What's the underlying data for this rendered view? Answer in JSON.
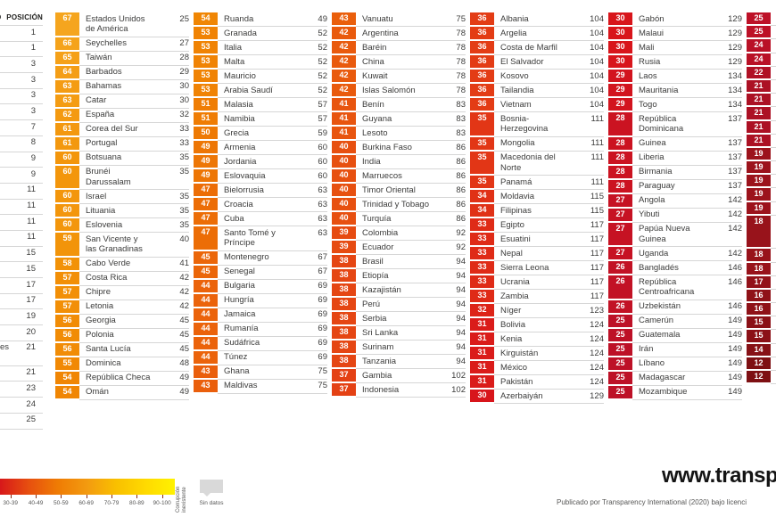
{
  "position_column": {
    "header": "POSICIÓN",
    "header_fragment": "O",
    "rows": [
      {
        "position": "1"
      },
      {
        "position": "1"
      },
      {
        "position": "3"
      },
      {
        "position": "3"
      },
      {
        "position": "3"
      },
      {
        "position": "3"
      },
      {
        "position": "7"
      },
      {
        "position": "8"
      },
      {
        "position": "9"
      },
      {
        "position": "9"
      },
      {
        "position": "11"
      },
      {
        "position": "11"
      },
      {
        "position": "11"
      },
      {
        "position": "11"
      },
      {
        "position": "15"
      },
      {
        "position": "15"
      },
      {
        "position": "17"
      },
      {
        "position": "17"
      },
      {
        "position": "19"
      },
      {
        "position": "20"
      },
      {
        "position": "21",
        "name_fragment": "es",
        "lines": 2
      },
      {
        "position": "21"
      },
      {
        "position": "23"
      },
      {
        "position": "24"
      },
      {
        "position": "25"
      }
    ]
  },
  "score_columns": [
    {
      "entries": [
        {
          "score": 67,
          "name": "Estados Unidos\nde América",
          "rank": "25"
        },
        {
          "score": 66,
          "name": "Seychelles",
          "rank": "27"
        },
        {
          "score": 65,
          "name": "Taiwán",
          "rank": "28"
        },
        {
          "score": 64,
          "name": "Barbados",
          "rank": "29"
        },
        {
          "score": 63,
          "name": "Bahamas",
          "rank": "30"
        },
        {
          "score": 63,
          "name": "Catar",
          "rank": "30"
        },
        {
          "score": 62,
          "name": "España",
          "rank": "32"
        },
        {
          "score": 61,
          "name": "Corea del Sur",
          "rank": "33"
        },
        {
          "score": 61,
          "name": "Portugal",
          "rank": "33"
        },
        {
          "score": 60,
          "name": "Botsuana",
          "rank": "35"
        },
        {
          "score": 60,
          "name": "Brunéi\nDarussalam",
          "rank": "35"
        },
        {
          "score": 60,
          "name": "Israel",
          "rank": "35"
        },
        {
          "score": 60,
          "name": "Lituania",
          "rank": "35"
        },
        {
          "score": 60,
          "name": "Eslovenia",
          "rank": "35"
        },
        {
          "score": 59,
          "name": "San Vicente y\nlas Granadinas",
          "rank": "40"
        },
        {
          "score": 58,
          "name": "Cabo Verde",
          "rank": "41"
        },
        {
          "score": 57,
          "name": "Costa Rica",
          "rank": "42"
        },
        {
          "score": 57,
          "name": "Chipre",
          "rank": "42"
        },
        {
          "score": 57,
          "name": "Letonia",
          "rank": "42"
        },
        {
          "score": 56,
          "name": "Georgia",
          "rank": "45"
        },
        {
          "score": 56,
          "name": "Polonia",
          "rank": "45"
        },
        {
          "score": 56,
          "name": "Santa Lucía",
          "rank": "45"
        },
        {
          "score": 55,
          "name": "Dominica",
          "rank": "48"
        },
        {
          "score": 54,
          "name": "República Checa",
          "rank": "49"
        },
        {
          "score": 54,
          "name": "Omán",
          "rank": "49"
        }
      ]
    },
    {
      "entries": [
        {
          "score": 54,
          "name": "Ruanda",
          "rank": "49"
        },
        {
          "score": 53,
          "name": "Granada",
          "rank": "52"
        },
        {
          "score": 53,
          "name": "Italia",
          "rank": "52"
        },
        {
          "score": 53,
          "name": "Malta",
          "rank": "52"
        },
        {
          "score": 53,
          "name": "Mauricio",
          "rank": "52"
        },
        {
          "score": 53,
          "name": "Arabia Saudí",
          "rank": "52"
        },
        {
          "score": 51,
          "name": "Malasia",
          "rank": "57"
        },
        {
          "score": 51,
          "name": "Namibia",
          "rank": "57"
        },
        {
          "score": 50,
          "name": "Grecia",
          "rank": "59"
        },
        {
          "score": 49,
          "name": "Armenia",
          "rank": "60"
        },
        {
          "score": 49,
          "name": "Jordania",
          "rank": "60"
        },
        {
          "score": 49,
          "name": "Eslovaquia",
          "rank": "60"
        },
        {
          "score": 47,
          "name": "Bielorrusia",
          "rank": "63"
        },
        {
          "score": 47,
          "name": "Croacia",
          "rank": "63"
        },
        {
          "score": 47,
          "name": "Cuba",
          "rank": "63"
        },
        {
          "score": 47,
          "name": "Santo Tomé y\nPríncipe",
          "rank": "63"
        },
        {
          "score": 45,
          "name": "Montenegro",
          "rank": "67"
        },
        {
          "score": 45,
          "name": "Senegal",
          "rank": "67"
        },
        {
          "score": 44,
          "name": "Bulgaria",
          "rank": "69"
        },
        {
          "score": 44,
          "name": "Hungría",
          "rank": "69"
        },
        {
          "score": 44,
          "name": "Jamaica",
          "rank": "69"
        },
        {
          "score": 44,
          "name": "Rumanía",
          "rank": "69"
        },
        {
          "score": 44,
          "name": "Sudáfrica",
          "rank": "69"
        },
        {
          "score": 44,
          "name": "Túnez",
          "rank": "69"
        },
        {
          "score": 43,
          "name": "Ghana",
          "rank": "75"
        },
        {
          "score": 43,
          "name": "Maldivas",
          "rank": "75"
        }
      ]
    },
    {
      "entries": [
        {
          "score": 43,
          "name": "Vanuatu",
          "rank": "75"
        },
        {
          "score": 42,
          "name": "Argentina",
          "rank": "78"
        },
        {
          "score": 42,
          "name": "Baréin",
          "rank": "78"
        },
        {
          "score": 42,
          "name": "China",
          "rank": "78"
        },
        {
          "score": 42,
          "name": "Kuwait",
          "rank": "78"
        },
        {
          "score": 42,
          "name": "Islas Salomón",
          "rank": "78"
        },
        {
          "score": 41,
          "name": "Benín",
          "rank": "83"
        },
        {
          "score": 41,
          "name": "Guyana",
          "rank": "83"
        },
        {
          "score": 41,
          "name": "Lesoto",
          "rank": "83"
        },
        {
          "score": 40,
          "name": "Burkina Faso",
          "rank": "86"
        },
        {
          "score": 40,
          "name": "India",
          "rank": "86"
        },
        {
          "score": 40,
          "name": "Marruecos",
          "rank": "86"
        },
        {
          "score": 40,
          "name": "Timor Oriental",
          "rank": "86"
        },
        {
          "score": 40,
          "name": "Trinidad y Tobago",
          "rank": "86"
        },
        {
          "score": 40,
          "name": "Turquía",
          "rank": "86"
        },
        {
          "score": 39,
          "name": "Colombia",
          "rank": "92"
        },
        {
          "score": 39,
          "name": "Ecuador",
          "rank": "92"
        },
        {
          "score": 38,
          "name": "Brasil",
          "rank": "94"
        },
        {
          "score": 38,
          "name": "Etiopía",
          "rank": "94"
        },
        {
          "score": 38,
          "name": "Kazajistán",
          "rank": "94"
        },
        {
          "score": 38,
          "name": "Perú",
          "rank": "94"
        },
        {
          "score": 38,
          "name": "Serbia",
          "rank": "94"
        },
        {
          "score": 38,
          "name": "Sri Lanka",
          "rank": "94"
        },
        {
          "score": 38,
          "name": "Surinam",
          "rank": "94"
        },
        {
          "score": 38,
          "name": "Tanzania",
          "rank": "94"
        },
        {
          "score": 37,
          "name": "Gambia",
          "rank": "102"
        },
        {
          "score": 37,
          "name": "Indonesia",
          "rank": "102"
        }
      ]
    },
    {
      "entries": [
        {
          "score": 36,
          "name": "Albania",
          "rank": "104"
        },
        {
          "score": 36,
          "name": "Argelia",
          "rank": "104"
        },
        {
          "score": 36,
          "name": "Costa de Marfil",
          "rank": "104"
        },
        {
          "score": 36,
          "name": "El Salvador",
          "rank": "104"
        },
        {
          "score": 36,
          "name": "Kosovo",
          "rank": "104"
        },
        {
          "score": 36,
          "name": "Tailandia",
          "rank": "104"
        },
        {
          "score": 36,
          "name": "Vietnam",
          "rank": "104"
        },
        {
          "score": 35,
          "name": "Bosnia-\nHerzegovina",
          "rank": "111"
        },
        {
          "score": 35,
          "name": "Mongolia",
          "rank": "111"
        },
        {
          "score": 35,
          "name": "Macedonia del\nNorte",
          "rank": "111"
        },
        {
          "score": 35,
          "name": "Panamá",
          "rank": "111"
        },
        {
          "score": 34,
          "name": "Moldavia",
          "rank": "115"
        },
        {
          "score": 34,
          "name": "Filipinas",
          "rank": "115"
        },
        {
          "score": 33,
          "name": "Egipto",
          "rank": "117"
        },
        {
          "score": 33,
          "name": "Esuatini",
          "rank": "117"
        },
        {
          "score": 33,
          "name": "Nepal",
          "rank": "117"
        },
        {
          "score": 33,
          "name": "Sierra Leona",
          "rank": "117"
        },
        {
          "score": 33,
          "name": "Ucrania",
          "rank": "117"
        },
        {
          "score": 33,
          "name": "Zambia",
          "rank": "117"
        },
        {
          "score": 32,
          "name": "Níger",
          "rank": "123"
        },
        {
          "score": 31,
          "name": "Bolivia",
          "rank": "124"
        },
        {
          "score": 31,
          "name": "Kenia",
          "rank": "124"
        },
        {
          "score": 31,
          "name": "Kirguistán",
          "rank": "124"
        },
        {
          "score": 31,
          "name": "México",
          "rank": "124"
        },
        {
          "score": 31,
          "name": "Pakistán",
          "rank": "124"
        },
        {
          "score": 30,
          "name": "Azerbaiyán",
          "rank": "129"
        }
      ]
    },
    {
      "entries": [
        {
          "score": 30,
          "name": "Gabón",
          "rank": "129"
        },
        {
          "score": 30,
          "name": "Malaui",
          "rank": "129"
        },
        {
          "score": 30,
          "name": "Mali",
          "rank": "129"
        },
        {
          "score": 30,
          "name": "Rusia",
          "rank": "129"
        },
        {
          "score": 29,
          "name": "Laos",
          "rank": "134"
        },
        {
          "score": 29,
          "name": "Mauritania",
          "rank": "134"
        },
        {
          "score": 29,
          "name": "Togo",
          "rank": "134"
        },
        {
          "score": 28,
          "name": "República\nDominicana",
          "rank": "137"
        },
        {
          "score": 28,
          "name": "Guinea",
          "rank": "137"
        },
        {
          "score": 28,
          "name": "Liberia",
          "rank": "137"
        },
        {
          "score": 28,
          "name": "Birmania",
          "rank": "137"
        },
        {
          "score": 28,
          "name": "Paraguay",
          "rank": "137"
        },
        {
          "score": 27,
          "name": "Angola",
          "rank": "142"
        },
        {
          "score": 27,
          "name": "Yibuti",
          "rank": "142"
        },
        {
          "score": 27,
          "name": "Papúa Nueva\nGuinea",
          "rank": "142"
        },
        {
          "score": 27,
          "name": "Uganda",
          "rank": "142"
        },
        {
          "score": 26,
          "name": "Bangladés",
          "rank": "146"
        },
        {
          "score": 26,
          "name": "República\nCentroafricana",
          "rank": "146"
        },
        {
          "score": 26,
          "name": "Uzbekistán",
          "rank": "146"
        },
        {
          "score": 25,
          "name": "Camerún",
          "rank": "149"
        },
        {
          "score": 25,
          "name": "Guatemala",
          "rank": "149"
        },
        {
          "score": 25,
          "name": "Irán",
          "rank": "149"
        },
        {
          "score": 25,
          "name": "Líbano",
          "rank": "149"
        },
        {
          "score": 25,
          "name": "Madagascar",
          "rank": "149"
        },
        {
          "score": 25,
          "name": "Mozambique",
          "rank": "149"
        }
      ]
    },
    {
      "entries": [
        {
          "score": 25
        },
        {
          "score": 25
        },
        {
          "score": 24
        },
        {
          "score": 24
        },
        {
          "score": 22
        },
        {
          "score": 21
        },
        {
          "score": 21
        },
        {
          "score": 21
        },
        {
          "score": 21
        },
        {
          "score": 21
        },
        {
          "score": 19
        },
        {
          "score": 19
        },
        {
          "score": 19
        },
        {
          "score": 19
        },
        {
          "score": 19
        },
        {
          "score": 18,
          "lines": 3
        },
        {
          "score": 18
        },
        {
          "score": 18
        },
        {
          "score": 17
        },
        {
          "score": 16
        },
        {
          "score": 16
        },
        {
          "score": 15
        },
        {
          "score": 15
        },
        {
          "score": 14
        },
        {
          "score": 12
        },
        {
          "score": 12
        }
      ]
    }
  ],
  "score_color_stops": [
    [
      12,
      "#7E1013"
    ],
    [
      19,
      "#9C131C"
    ],
    [
      21,
      "#AC1124"
    ],
    [
      25,
      "#BD1127"
    ],
    [
      28,
      "#CB1321"
    ],
    [
      30,
      "#D8151B"
    ],
    [
      33,
      "#DF2B17"
    ],
    [
      36,
      "#E33C15"
    ],
    [
      40,
      "#E75010"
    ],
    [
      43,
      "#EA5F0C"
    ],
    [
      47,
      "#EC6D06"
    ],
    [
      50,
      "#EE7A04"
    ],
    [
      54,
      "#F08604"
    ],
    [
      58,
      "#F29208"
    ],
    [
      63,
      "#F49C13"
    ],
    [
      67,
      "#F5A51E"
    ]
  ],
  "legend": {
    "ranges": [
      "30-39",
      "40-49",
      "50-59",
      "60-69",
      "70-79",
      "80-89",
      "90-100"
    ],
    "gradient": [
      "#D7181A",
      "#E7500F",
      "#EF7C04",
      "#F39B10",
      "#F9C000",
      "#FFDA00",
      "#FFF200"
    ],
    "corruption_free_label": "Corrupción\ninexistente",
    "no_data_label": "Sin datos",
    "no_data_color": "#D9D9D9"
  },
  "footer": {
    "website": "www.transpa",
    "attribution": "Publicado por Transparency International (2020) bajo licenci"
  }
}
